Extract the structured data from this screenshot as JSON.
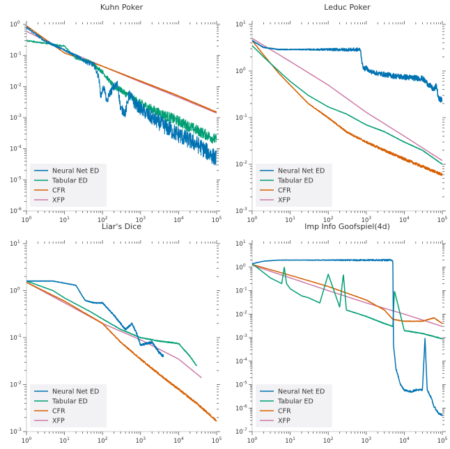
{
  "colors": {
    "Neural Net ED": "#0072B2",
    "Tabular ED": "#009E73",
    "CFR": "#D55E00",
    "XFP": "#CC79A7",
    "legend_bg": "#f2f2f5"
  },
  "x_tick_labels": [
    "10^0",
    "10^1",
    "10^2",
    "10^3",
    "10^4",
    "10^5"
  ],
  "chart_data": [
    {
      "type": "line",
      "title": "Kuhn Poker",
      "xscale": "log",
      "yscale": "log",
      "xlim": [
        1,
        100000
      ],
      "ylim": [
        1e-06,
        1
      ],
      "yticks": [
        "10^-6",
        "10^-5",
        "10^-4",
        "10^-3",
        "10^-2",
        "10^-1",
        "10^0"
      ],
      "legend": "lower-left",
      "series": [
        {
          "name": "Neural Net ED",
          "noise": 0.55,
          "x": [
            1,
            3,
            10,
            20,
            40,
            60,
            80,
            90,
            100,
            110,
            130,
            150,
            200,
            250,
            300,
            400,
            500,
            700,
            1000,
            2000,
            5000,
            10000,
            30000,
            100000
          ],
          "y": [
            0.8,
            0.3,
            0.15,
            0.1,
            0.06,
            0.05,
            0.02,
            0.005,
            0.008,
            0.01,
            0.003,
            0.006,
            0.01,
            0.012,
            0.002,
            0.0015,
            0.006,
            0.003,
            0.002,
            0.001,
            0.0005,
            0.0003,
            0.00015,
            5e-05
          ]
        },
        {
          "name": "Tabular ED",
          "noise": 0.35,
          "x": [
            1,
            3,
            10,
            20,
            40,
            60,
            100,
            200,
            300,
            500,
            1000,
            3000,
            10000,
            100000
          ],
          "y": [
            0.3,
            0.25,
            0.2,
            0.08,
            0.07,
            0.05,
            0.03,
            0.01,
            0.008,
            0.005,
            0.003,
            0.0015,
            0.0008,
            0.0002
          ]
        },
        {
          "name": "CFR",
          "noise": 0.02,
          "x": [
            1,
            10,
            100,
            1000,
            10000,
            100000
          ],
          "y": [
            0.9,
            0.12,
            0.045,
            0.015,
            0.005,
            0.0015
          ]
        },
        {
          "name": "XFP",
          "noise": 0,
          "x": [
            1,
            10,
            100,
            1000,
            10000,
            100000
          ],
          "y": [
            0.6,
            0.15,
            0.045,
            0.014,
            0.0045,
            0.0014
          ]
        }
      ]
    },
    {
      "type": "line",
      "title": "Leduc Poker",
      "xscale": "log",
      "yscale": "log",
      "xlim": [
        1,
        100000
      ],
      "ylim": [
        0.001,
        10
      ],
      "yticks": [
        "10^-3",
        "10^-2",
        "10^-1",
        "10^0",
        "10^1"
      ],
      "legend": "lower-left",
      "series": [
        {
          "name": "Neural Net ED",
          "noise": 0.12,
          "x": [
            1,
            2,
            5,
            10,
            100,
            700,
            800,
            900,
            1000,
            1200,
            2000,
            5000,
            10000,
            30000,
            60000,
            70000,
            80000,
            100000
          ],
          "y": [
            4.5,
            3.2,
            2.9,
            2.9,
            2.9,
            2.9,
            1.3,
            1.1,
            1.2,
            1.0,
            0.9,
            0.8,
            0.75,
            0.7,
            0.4,
            0.5,
            0.25,
            0.25
          ]
        },
        {
          "name": "Tabular ED",
          "noise": 0.01,
          "x": [
            1,
            2,
            5,
            10,
            30,
            100,
            300,
            1000,
            3000,
            10000,
            30000,
            100000
          ],
          "y": [
            3.5,
            2.0,
            1.0,
            0.6,
            0.3,
            0.17,
            0.12,
            0.07,
            0.05,
            0.03,
            0.02,
            0.01
          ]
        },
        {
          "name": "CFR",
          "noise": 0.06,
          "x": [
            1,
            2,
            5,
            10,
            30,
            100,
            300,
            1000,
            3000,
            10000,
            30000,
            100000
          ],
          "y": [
            4.5,
            2.2,
            0.9,
            0.5,
            0.2,
            0.1,
            0.05,
            0.03,
            0.02,
            0.013,
            0.009,
            0.006
          ]
        },
        {
          "name": "XFP",
          "noise": 0,
          "x": [
            1,
            10,
            100,
            1000,
            10000,
            100000
          ],
          "y": [
            5.0,
            1.6,
            0.5,
            0.13,
            0.04,
            0.012
          ]
        }
      ]
    },
    {
      "type": "line",
      "title": "Liar's Dice",
      "xscale": "log",
      "yscale": "log",
      "xlim": [
        1,
        100000
      ],
      "ylim": [
        0.001,
        10
      ],
      "yticks": [
        "10^-3",
        "10^-2",
        "10^-1",
        "10^0",
        "10^1"
      ],
      "legend": "lower-left",
      "series": [
        {
          "name": "Neural Net ED",
          "noise": 0.06,
          "x": [
            1,
            5,
            20,
            30,
            35,
            40,
            60,
            100,
            200,
            400,
            600,
            800,
            1000,
            2000,
            3000,
            4000
          ],
          "y": [
            1.6,
            1.6,
            1.3,
            0.75,
            0.62,
            0.6,
            0.55,
            0.55,
            0.3,
            0.15,
            0.2,
            0.12,
            0.07,
            0.08,
            0.05,
            0.04
          ]
        },
        {
          "name": "Tabular ED",
          "noise": 0.02,
          "x": [
            1,
            5,
            10,
            50,
            100,
            300,
            1000,
            3000,
            10000,
            20000,
            30000
          ],
          "y": [
            1.6,
            1.0,
            0.7,
            0.35,
            0.25,
            0.15,
            0.1,
            0.085,
            0.075,
            0.04,
            0.025
          ]
        },
        {
          "name": "CFR",
          "noise": 0.04,
          "x": [
            1,
            10,
            100,
            300,
            1000,
            3000,
            10000,
            30000,
            100000
          ],
          "y": [
            1.5,
            0.6,
            0.2,
            0.08,
            0.035,
            0.017,
            0.008,
            0.004,
            0.0017
          ]
        },
        {
          "name": "XFP",
          "noise": 0,
          "x": [
            1,
            10,
            100,
            1000,
            10000,
            40000
          ],
          "y": [
            1.5,
            0.55,
            0.2,
            0.09,
            0.035,
            0.014
          ]
        }
      ]
    },
    {
      "type": "line",
      "title": "Imp Info Goofspiel(4d)",
      "xscale": "log",
      "yscale": "log",
      "xlim": [
        1,
        100000
      ],
      "ylim": [
        1e-07,
        10
      ],
      "yticks": [
        "10^-7",
        "10^-6",
        "10^-5",
        "10^-4",
        "10^-3",
        "10^-2",
        "10^-1",
        "10^0",
        "10^1"
      ],
      "legend": "lower-left",
      "series": [
        {
          "name": "Neural Net ED",
          "noise": 0.08,
          "x": [
            1,
            2,
            5,
            10,
            100,
            1000,
            5000,
            5200,
            6000,
            8000,
            10000,
            15000,
            20000,
            30000,
            35000,
            40000,
            50000,
            60000,
            80000,
            100000
          ],
          "y": [
            1.4,
            1.8,
            2.0,
            2.0,
            2.0,
            2.0,
            2.0,
            0.0005,
            5e-05,
            1e-05,
            6e-06,
            5e-06,
            6e-06,
            6e-06,
            0.001,
            6e-06,
            3e-06,
            1.2e-06,
            6e-07,
            5e-07
          ]
        },
        {
          "name": "Tabular ED",
          "noise": 0.03,
          "x": [
            1,
            3,
            6,
            7,
            8,
            10,
            20,
            30,
            60,
            100,
            200,
            250,
            300,
            1000,
            3000,
            5000,
            5500,
            10000,
            30000,
            100000
          ],
          "y": [
            1.4,
            0.35,
            0.2,
            1.0,
            0.2,
            0.12,
            0.06,
            0.05,
            0.03,
            0.5,
            0.02,
            0.5,
            0.015,
            0.008,
            0.004,
            0.003,
            0.1,
            0.002,
            0.0015,
            0.0009
          ]
        },
        {
          "name": "CFR",
          "noise": 0.02,
          "x": [
            1,
            10,
            100,
            1000,
            3000,
            5000,
            10000,
            30000,
            60000,
            100000
          ],
          "y": [
            1.3,
            0.45,
            0.15,
            0.04,
            0.015,
            0.006,
            0.005,
            0.005,
            0.007,
            0.004
          ]
        },
        {
          "name": "XFP",
          "noise": 0,
          "x": [
            1,
            10,
            100,
            1000,
            10000,
            100000
          ],
          "y": [
            1.2,
            0.35,
            0.1,
            0.03,
            0.01,
            0.003
          ]
        }
      ]
    }
  ]
}
